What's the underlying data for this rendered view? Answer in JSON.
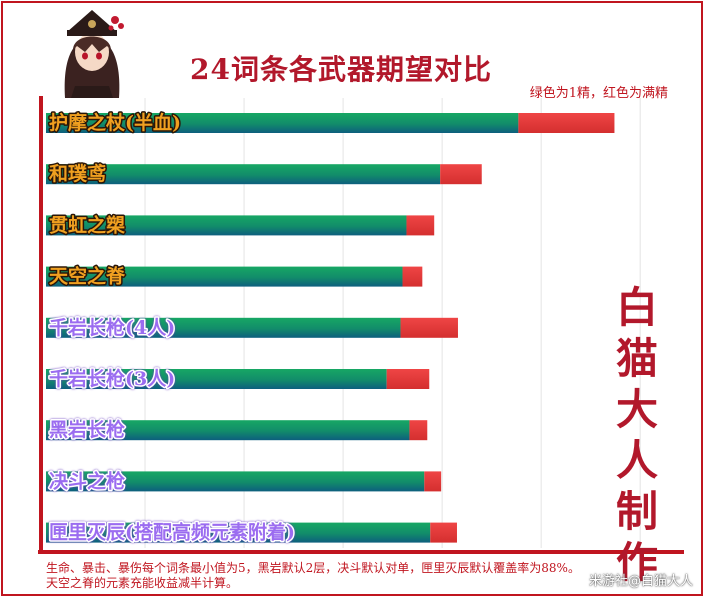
{
  "header": {
    "title": "24词条各武器期望对比",
    "legend_note": "绿色为1精，红色为满精"
  },
  "side_text": [
    "白",
    "猫",
    "大",
    "人",
    "制",
    "作"
  ],
  "footer": {
    "line1": "生命、暴击、暴伤每个词条最小值为5，黑岩默认2层，决斗默认对单，匣里灭辰默认覆盖率为88%。",
    "line2": "天空之脊的元素充能收益减半计算。"
  },
  "watermark": "米游社@白猫大人",
  "colors": {
    "green": "#149a62",
    "teal": "#0f6e78",
    "red": "#e23b3b",
    "frame": "#c0151f",
    "gold_text": "#f0a020",
    "purple_text": "#9b6cf0"
  },
  "chart_data": {
    "type": "bar",
    "orientation": "horizontal",
    "stacked": true,
    "title": "24词条各武器期望对比",
    "categories": [
      "护摩之杖(半血)",
      "和璞鸢",
      "贯虹之槊",
      "天空之脊",
      "千岩长枪(4人)",
      "千岩长枪(3人)",
      "黑岩长枪",
      "决斗之枪",
      "匣里灭辰(搭配高频元素附着)"
    ],
    "category_rarity": [
      "5star",
      "5star",
      "5star",
      "5star",
      "4star",
      "4star",
      "4star",
      "4star",
      "4star"
    ],
    "series": [
      {
        "name": "1精",
        "values": [
          477,
          398,
          364,
          360,
          358,
          344,
          367,
          382,
          388
        ]
      },
      {
        "name": "满精",
        "values": [
          97,
          42,
          28,
          20,
          58,
          43,
          18,
          17,
          27
        ]
      }
    ],
    "xlim": [
      0,
      620
    ],
    "grid": true
  }
}
